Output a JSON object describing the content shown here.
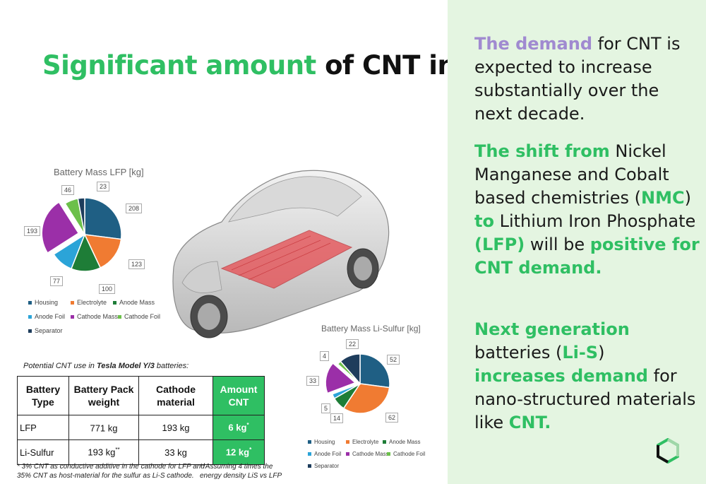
{
  "title": {
    "part1": "Significant amount",
    "part2": " of CNT in the EV battery"
  },
  "lfp_chart": {
    "title": "Battery Mass LFP [kg]",
    "legend": [
      {
        "name": "Housing",
        "color": "#1f5f84"
      },
      {
        "name": "Electrolyte",
        "color": "#f07b32"
      },
      {
        "name": "Anode Mass",
        "color": "#1e7d37"
      },
      {
        "name": "Anode Foil",
        "color": "#2ba4d8"
      },
      {
        "name": "Cathode Mass",
        "color": "#9b2fa8"
      },
      {
        "name": "Cathode Foil",
        "color": "#6cc04a"
      },
      {
        "name": "Separator",
        "color": "#1e3d5c"
      }
    ],
    "labels": [
      "208",
      "123",
      "100",
      "77",
      "193",
      "46",
      "23"
    ]
  },
  "lis_chart": {
    "title": "Battery Mass Li-Sulfur [kg]",
    "legend": [
      {
        "name": "Housing",
        "color": "#1f5f84"
      },
      {
        "name": "Electrolyte",
        "color": "#f07b32"
      },
      {
        "name": "Anode Mass",
        "color": "#1e7d37"
      },
      {
        "name": "Anode Foil",
        "color": "#2ba4d8"
      },
      {
        "name": "Cathode Mass",
        "color": "#9b2fa8"
      },
      {
        "name": "Cathode Foil",
        "color": "#6cc04a"
      },
      {
        "name": "Separator",
        "color": "#1e3d5c"
      }
    ],
    "labels": [
      "52",
      "62",
      "14",
      "5",
      "33",
      "4",
      "22"
    ]
  },
  "chart_data": [
    {
      "type": "pie",
      "title": "Battery Mass LFP [kg]",
      "categories": [
        "Housing",
        "Electrolyte",
        "Anode Mass",
        "Anode Foil",
        "Cathode Mass",
        "Cathode Foil",
        "Separator"
      ],
      "values": [
        208,
        123,
        100,
        77,
        193,
        46,
        23
      ],
      "legend": "bottom"
    },
    {
      "type": "pie",
      "title": "Battery Mass Li-Sulfur [kg]",
      "categories": [
        "Housing",
        "Electrolyte",
        "Anode Mass",
        "Anode Foil",
        "Cathode Mass",
        "Cathode Foil",
        "Separator"
      ],
      "values": [
        52,
        62,
        14,
        5,
        33,
        4,
        22
      ],
      "legend": "bottom"
    }
  ],
  "table": {
    "caption_pre": "Potential CNT use in ",
    "caption_bold": "Tesla Model Y/3",
    "caption_post": " batteries:",
    "headers": {
      "c1a": "Battery",
      "c1b": "Type",
      "c2a": "Battery Pack",
      "c2b": "weight",
      "c3a": "Cathode",
      "c3b": "material",
      "c4a": "Amount",
      "c4b": "CNT"
    },
    "rows": [
      {
        "type": "LFP",
        "weight": "771 kg",
        "weight_mark": "",
        "cathode": "193 kg",
        "cnt": "6 kg",
        "cnt_mark": "*"
      },
      {
        "type": "Li-Sulfur",
        "weight": "193 kg",
        "weight_mark": "**",
        "cathode": "33 kg",
        "cnt": "12 kg",
        "cnt_mark": "*"
      }
    ]
  },
  "footnotes": {
    "f1_line1": "* 3% CNT as conductive additive in the cathode for LFP and",
    "f1_line2": "35% CNT as host-material for the sulfur as Li-S cathode.",
    "f2_line1": "**Assuming 4 times the",
    "f2_line2": "energy density LiS vs LFP"
  },
  "panel": {
    "p1_a": "The demand",
    "p1_b": " for CNT is expected to increase substantially over the next decade.",
    "p2_a": "The shift from",
    "p2_b": " Nickel Manganese and Cobalt based chemistries (",
    "p2_c": "NMC",
    "p2_d": ") ",
    "p2_e": "to",
    "p2_f": " Lithium Iron Phosphate ",
    "p2_g": "(LFP)",
    "p2_h": " will be ",
    "p2_i": "positive for CNT demand.",
    "p3_a": "Next generation",
    "p3_b": " batteries (",
    "p3_c": "Li-S",
    "p3_d": ") ",
    "p3_e": "increases demand",
    "p3_f": " for nano-structured materials like ",
    "p3_g": "CNT."
  },
  "colors": {
    "accent_green": "#2fbf63",
    "accent_purple": "#a08ad0",
    "panel_bg": "#e4f5e1"
  }
}
